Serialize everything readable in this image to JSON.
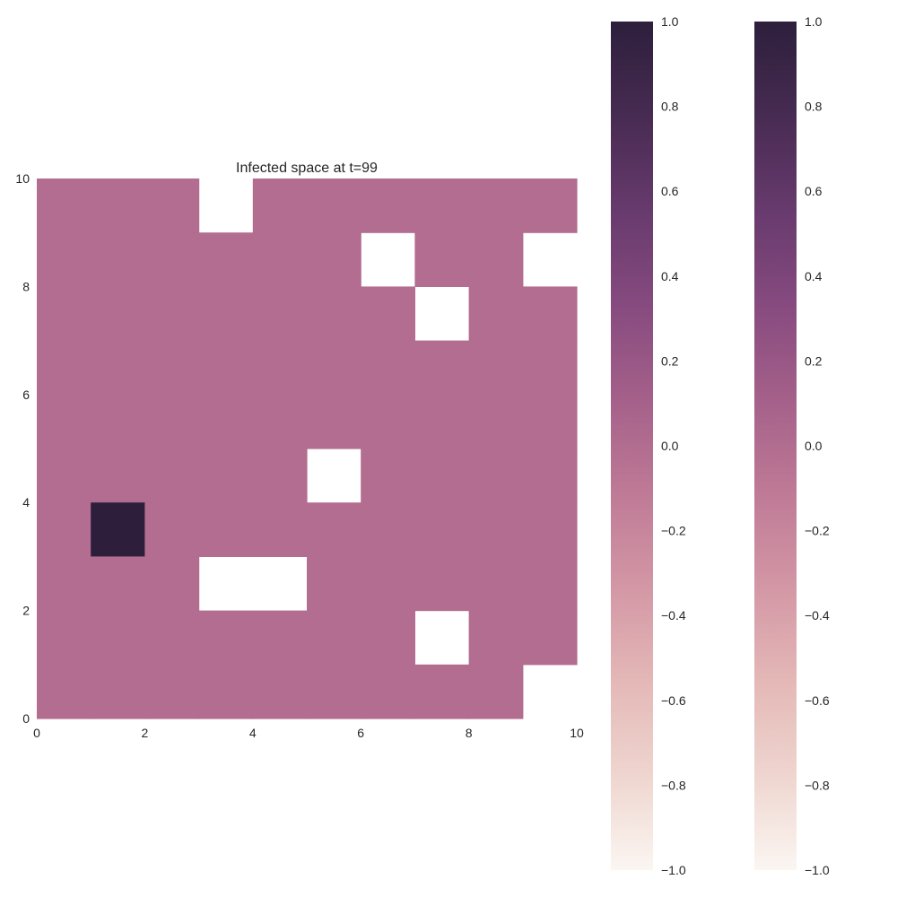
{
  "chart_data": {
    "type": "heatmap",
    "title": "Infected space at t=99",
    "xlabel": "",
    "ylabel": "",
    "xlim": [
      0,
      10
    ],
    "ylim": [
      0,
      10
    ],
    "x_ticks": [
      "0",
      "2",
      "4",
      "6",
      "8",
      "10"
    ],
    "y_ticks": [
      "0",
      "2",
      "4",
      "6",
      "8",
      "10"
    ],
    "grid": false,
    "note_missing_cells": "null = empty (white) cell",
    "rows_top_to_bottom": [
      [
        0,
        0,
        0,
        null,
        0,
        0,
        0,
        0,
        0,
        0
      ],
      [
        0,
        0,
        0,
        0,
        0,
        0,
        null,
        0,
        0,
        null
      ],
      [
        0,
        0,
        0,
        0,
        0,
        0,
        0,
        null,
        0,
        0
      ],
      [
        0,
        0,
        0,
        0,
        0,
        0,
        0,
        0,
        0,
        0
      ],
      [
        0,
        0,
        0,
        0,
        0,
        0,
        0,
        0,
        0,
        0
      ],
      [
        0,
        0,
        0,
        0,
        0,
        null,
        0,
        0,
        0,
        0
      ],
      [
        0,
        1,
        0,
        0,
        0,
        0,
        0,
        0,
        0,
        0
      ],
      [
        0,
        0,
        0,
        null,
        null,
        0,
        0,
        0,
        0,
        0
      ],
      [
        0,
        0,
        0,
        0,
        0,
        0,
        0,
        null,
        0,
        0
      ],
      [
        0,
        0,
        0,
        0,
        0,
        0,
        0,
        0,
        0,
        null
      ]
    ],
    "colorbars": [
      {
        "min": -1.0,
        "max": 1.0,
        "tick_labels": [
          "1.0",
          "0.8",
          "0.6",
          "0.4",
          "0.2",
          "0.0",
          "−0.2",
          "−0.4",
          "−0.6",
          "−0.8",
          "−1.0"
        ],
        "tick_values": [
          1.0,
          0.8,
          0.6,
          0.4,
          0.2,
          0.0,
          -0.2,
          -0.4,
          -0.6,
          -0.8,
          -1.0
        ]
      },
      {
        "min": -1.0,
        "max": 1.0,
        "tick_labels": [
          "1.0",
          "0.8",
          "0.6",
          "0.4",
          "0.2",
          "0.0",
          "−0.2",
          "−0.4",
          "−0.6",
          "−0.8",
          "−1.0"
        ],
        "tick_values": [
          1.0,
          0.8,
          0.6,
          0.4,
          0.2,
          0.0,
          -0.2,
          -0.4,
          -0.6,
          -0.8,
          -1.0
        ]
      }
    ],
    "colormap": [
      "#fbf6f2",
      "#efd5cf",
      "#e4b8b7",
      "#d397a5",
      "#bf7a96",
      "#a46089",
      "#864a7f",
      "#673a6d",
      "#472b52",
      "#2d1f3c"
    ]
  }
}
